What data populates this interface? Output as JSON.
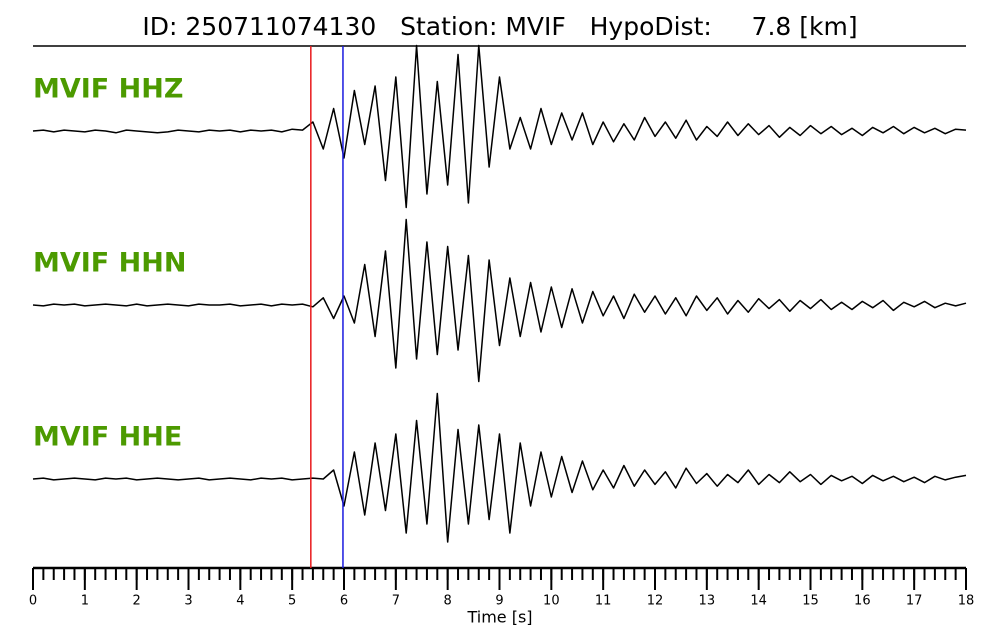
{
  "chart_data": {
    "type": "seismogram",
    "title": "ID: 250711074130   Station: MVIF   HypoDist:     7.8 [km]",
    "xlabel": "Time [s]",
    "xlim": [
      0,
      18
    ],
    "xticks": [
      0,
      1,
      2,
      3,
      4,
      5,
      6,
      7,
      8,
      9,
      10,
      11,
      12,
      13,
      14,
      15,
      16,
      17,
      18
    ],
    "minor_xtick_step": 0.2,
    "ylim": [
      -1,
      1
    ],
    "label_color": "#4c9a00",
    "markers": [
      {
        "x": 5.36,
        "color": "#e8191c"
      },
      {
        "x": 5.98,
        "color": "#1a1adf"
      }
    ],
    "x": [
      0,
      0.2,
      0.4,
      0.6,
      0.8,
      1,
      1.2,
      1.4,
      1.6,
      1.8,
      2,
      2.2,
      2.4,
      2.6,
      2.8,
      3,
      3.2,
      3.4,
      3.6,
      3.8,
      4,
      4.2,
      4.4,
      4.6,
      4.8,
      5,
      5.2,
      5.4,
      5.6,
      5.8,
      6,
      6.2,
      6.4,
      6.6,
      6.8,
      7,
      7.2,
      7.4,
      7.6,
      7.8,
      8,
      8.2,
      8.4,
      8.6,
      8.8,
      9,
      9.2,
      9.4,
      9.6,
      9.8,
      10,
      10.2,
      10.4,
      10.6,
      10.8,
      11,
      11.2,
      11.4,
      11.6,
      11.8,
      12,
      12.2,
      12.4,
      12.6,
      12.8,
      13,
      13.2,
      13.4,
      13.6,
      13.8,
      14,
      14.2,
      14.4,
      14.6,
      14.8,
      15,
      15.2,
      15.4,
      15.6,
      15.8,
      16,
      16.2,
      16.4,
      16.6,
      16.8,
      17,
      17.2,
      17.4,
      17.6,
      17.8,
      18
    ],
    "series": [
      {
        "name": "MVIF HHZ",
        "color": "#000000",
        "values": [
          0,
          0.01,
          -0.01,
          0.01,
          0,
          -0.01,
          0.01,
          0,
          -0.02,
          0.01,
          0,
          -0.01,
          -0.02,
          -0.01,
          0.01,
          0,
          -0.01,
          0.01,
          0,
          0.01,
          -0.01,
          0.01,
          0,
          0.01,
          -0.01,
          0.02,
          0.01,
          0.1,
          -0.2,
          0.25,
          -0.3,
          0.45,
          -0.15,
          0.5,
          -0.55,
          0.6,
          -0.85,
          0.95,
          -0.7,
          0.55,
          -0.6,
          0.85,
          -0.8,
          0.95,
          -0.4,
          0.6,
          -0.2,
          0.15,
          -0.2,
          0.25,
          -0.15,
          0.2,
          -0.1,
          0.2,
          -0.15,
          0.1,
          -0.12,
          0.08,
          -0.1,
          0.15,
          -0.06,
          0.1,
          -0.08,
          0.12,
          -0.1,
          0.05,
          -0.06,
          0.1,
          -0.05,
          0.08,
          -0.04,
          0.06,
          -0.07,
          0.04,
          -0.05,
          0.06,
          -0.03,
          0.05,
          -0.04,
          0.03,
          -0.05,
          0.04,
          -0.02,
          0.05,
          -0.03,
          0.04,
          -0.02,
          0.03,
          -0.03,
          0.02,
          0.01
        ]
      },
      {
        "name": "MVIF HHN",
        "color": "#000000",
        "values": [
          0,
          -0.01,
          0.01,
          0,
          0.01,
          -0.01,
          0,
          0.01,
          0,
          -0.01,
          0.01,
          -0.01,
          0,
          0.01,
          0,
          -0.01,
          0.01,
          0,
          0,
          0.01,
          -0.01,
          0,
          0.01,
          -0.01,
          0.01,
          0,
          0.01,
          -0.02,
          0.08,
          -0.15,
          0.1,
          -0.2,
          0.45,
          -0.35,
          0.6,
          -0.7,
          0.95,
          -0.6,
          0.7,
          -0.55,
          0.65,
          -0.5,
          0.55,
          -0.85,
          0.5,
          -0.45,
          0.3,
          -0.35,
          0.25,
          -0.3,
          0.2,
          -0.25,
          0.18,
          -0.2,
          0.15,
          -0.12,
          0.1,
          -0.15,
          0.12,
          -0.08,
          0.1,
          -0.1,
          0.08,
          -0.12,
          0.1,
          -0.06,
          0.08,
          -0.1,
          0.05,
          -0.08,
          0.07,
          -0.04,
          0.06,
          -0.07,
          0.05,
          -0.04,
          0.06,
          -0.05,
          0.03,
          -0.05,
          0.04,
          -0.03,
          0.05,
          -0.06,
          0.03,
          -0.02,
          0.04,
          -0.03,
          0.02,
          -0.01,
          0.02
        ]
      },
      {
        "name": "MVIF HHE",
        "color": "#000000",
        "values": [
          0,
          0.01,
          -0.01,
          0,
          0.01,
          0,
          -0.01,
          0.01,
          0,
          0.01,
          -0.01,
          0,
          0.01,
          0,
          -0.01,
          0,
          0.01,
          -0.01,
          0,
          0.01,
          0,
          -0.01,
          0.01,
          0,
          0.01,
          -0.01,
          0,
          0.01,
          0,
          0.1,
          -0.3,
          0.3,
          -0.4,
          0.4,
          -0.35,
          0.5,
          -0.6,
          0.65,
          -0.5,
          0.95,
          -0.7,
          0.55,
          -0.5,
          0.6,
          -0.45,
          0.5,
          -0.6,
          0.4,
          -0.3,
          0.3,
          -0.2,
          0.25,
          -0.15,
          0.2,
          -0.12,
          0.1,
          -0.1,
          0.15,
          -0.08,
          0.1,
          -0.06,
          0.08,
          -0.1,
          0.12,
          -0.05,
          0.06,
          -0.08,
          0.05,
          -0.04,
          0.1,
          -0.06,
          0.05,
          -0.04,
          0.08,
          -0.03,
          0.05,
          -0.06,
          0.04,
          -0.02,
          0.03,
          -0.05,
          0.04,
          -0.02,
          0.03,
          -0.03,
          0.02,
          -0.04,
          0.03,
          -0.01,
          0.02,
          0.04
        ]
      }
    ]
  }
}
